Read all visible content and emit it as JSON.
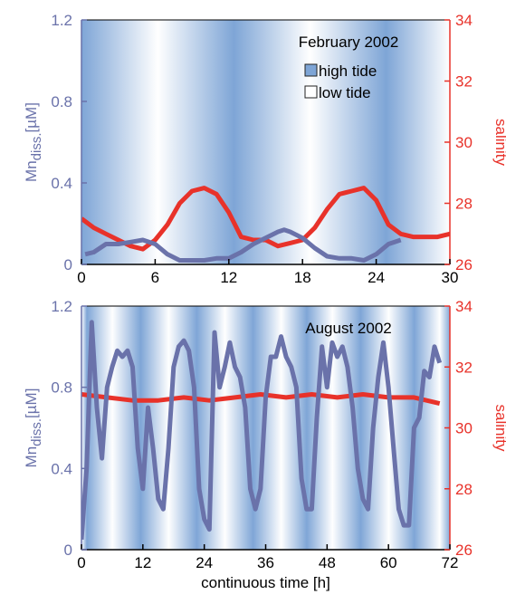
{
  "chart_data": [
    {
      "type": "line",
      "annotation": "February 2002",
      "xlim": [
        0,
        30
      ],
      "xticks": [
        0,
        6,
        12,
        18,
        24,
        30
      ],
      "ylim": [
        0,
        1.2
      ],
      "yticks": [
        0,
        0.4,
        0.8,
        1.2
      ],
      "y2lim": [
        26,
        34
      ],
      "y2ticks": [
        26,
        28,
        30,
        32,
        34
      ],
      "ylabel": [
        "Mn",
        "diss.",
        "[µM]"
      ],
      "y2label": "salinity",
      "tide_colors": {
        "high": "#7ea5d6",
        "low": "#ffffff"
      },
      "tide": [
        {
          "x": 0,
          "level": "high"
        },
        {
          "x": 6.2,
          "level": "low"
        },
        {
          "x": 12.4,
          "level": "high"
        },
        {
          "x": 18.6,
          "level": "low"
        },
        {
          "x": 24.8,
          "level": "high"
        },
        {
          "x": 30,
          "level": "low"
        }
      ],
      "legend": [
        {
          "label": "high tide",
          "level": "high"
        },
        {
          "label": "low tide",
          "level": "low"
        }
      ],
      "series": [
        {
          "color": "#e8322a",
          "axis": "y2",
          "x": [
            0,
            1,
            2,
            3,
            4,
            5,
            6,
            7,
            8,
            9,
            10,
            11,
            12,
            13,
            14,
            15,
            16,
            17,
            18,
            19,
            20,
            21,
            22,
            23,
            24,
            25,
            26,
            27,
            28,
            29,
            30
          ],
          "values": [
            27.5,
            27.2,
            27.0,
            26.8,
            26.6,
            26.5,
            26.8,
            27.3,
            28.0,
            28.4,
            28.5,
            28.3,
            27.7,
            26.9,
            26.8,
            26.8,
            26.6,
            26.7,
            26.8,
            27.2,
            27.8,
            28.3,
            28.4,
            28.5,
            28.1,
            27.3,
            27.0,
            26.9,
            26.9,
            26.9,
            27.0
          ]
        },
        {
          "color": "#6a72aa",
          "axis": "y",
          "x": [
            0.3,
            1,
            2,
            3,
            4,
            5,
            6,
            7,
            8,
            9,
            10,
            11,
            12,
            13,
            14,
            15,
            16,
            16.5,
            17,
            18,
            19,
            20,
            21,
            22,
            23,
            24,
            25,
            26
          ],
          "values": [
            0.05,
            0.06,
            0.1,
            0.1,
            0.11,
            0.12,
            0.1,
            0.05,
            0.02,
            0.02,
            0.02,
            0.03,
            0.03,
            0.06,
            0.1,
            0.13,
            0.16,
            0.17,
            0.16,
            0.13,
            0.08,
            0.04,
            0.03,
            0.03,
            0.02,
            0.05,
            0.1,
            0.12
          ]
        }
      ]
    },
    {
      "type": "line",
      "annotation": "August 2002",
      "xlabel": "continuous time [h]",
      "xlim": [
        0,
        72
      ],
      "xticks": [
        0,
        12,
        24,
        36,
        48,
        60,
        72
      ],
      "ylim": [
        0,
        1.2
      ],
      "yticks": [
        0,
        0.4,
        0.8,
        1.2
      ],
      "y2lim": [
        26,
        34
      ],
      "y2ticks": [
        26,
        28,
        30,
        32,
        34
      ],
      "ylabel": [
        "Mn",
        "diss.",
        "[µM]"
      ],
      "y2label": "salinity",
      "tide_colors": {
        "high": "#7ea5d6",
        "low": "#ffffff"
      },
      "tide": [
        {
          "x": 0,
          "level": "low"
        },
        {
          "x": 1,
          "level": "high"
        },
        {
          "x": 6,
          "level": "low"
        },
        {
          "x": 11.5,
          "level": "high"
        },
        {
          "x": 17,
          "level": "low"
        },
        {
          "x": 22.5,
          "level": "high"
        },
        {
          "x": 28,
          "level": "low"
        },
        {
          "x": 33.5,
          "level": "high"
        },
        {
          "x": 39,
          "level": "low"
        },
        {
          "x": 44,
          "level": "high"
        },
        {
          "x": 49,
          "level": "low"
        },
        {
          "x": 54.5,
          "level": "high"
        },
        {
          "x": 60,
          "level": "low"
        },
        {
          "x": 65,
          "level": "high"
        },
        {
          "x": 70,
          "level": "low"
        },
        {
          "x": 72,
          "level": "high"
        }
      ],
      "series": [
        {
          "color": "#e8322a",
          "axis": "y2",
          "x": [
            0,
            5,
            10,
            15,
            20,
            25,
            30,
            35,
            40,
            45,
            50,
            55,
            60,
            65,
            70
          ],
          "values": [
            31.1,
            31.0,
            30.9,
            30.9,
            31.0,
            30.9,
            31.0,
            31.1,
            31.0,
            31.1,
            31.0,
            31.1,
            31.0,
            31.0,
            30.8
          ]
        },
        {
          "color": "#6a72aa",
          "axis": "y",
          "x": [
            0,
            1,
            2,
            3,
            4,
            5,
            6,
            7,
            8,
            9,
            10,
            11,
            12,
            13,
            14,
            15,
            16,
            17,
            18,
            19,
            20,
            21,
            22,
            23,
            24,
            25,
            26,
            27,
            28,
            29,
            30,
            31,
            32,
            33,
            34,
            35,
            36,
            37,
            38,
            39,
            40,
            41,
            42,
            43,
            44,
            45,
            46,
            47,
            48,
            49,
            50,
            51,
            52,
            53,
            54,
            55,
            56,
            57,
            58,
            59,
            60,
            61,
            62,
            63,
            64,
            65,
            66,
            67,
            68,
            69,
            70
          ],
          "values": [
            0.05,
            0.4,
            1.12,
            0.7,
            0.45,
            0.8,
            0.9,
            0.98,
            0.95,
            0.98,
            0.9,
            0.5,
            0.3,
            0.7,
            0.5,
            0.25,
            0.2,
            0.5,
            0.9,
            1.0,
            1.03,
            0.98,
            0.8,
            0.3,
            0.15,
            0.1,
            1.07,
            0.8,
            0.9,
            1.02,
            0.9,
            0.85,
            0.7,
            0.3,
            0.2,
            0.3,
            0.75,
            0.95,
            0.95,
            1.05,
            0.95,
            0.9,
            0.8,
            0.35,
            0.2,
            0.2,
            0.65,
            1.0,
            0.8,
            1.02,
            0.95,
            1.0,
            0.9,
            0.7,
            0.4,
            0.25,
            0.2,
            0.6,
            0.85,
            1.02,
            0.8,
            0.5,
            0.2,
            0.12,
            0.12,
            0.6,
            0.65,
            0.88,
            0.85,
            1.0,
            0.92
          ]
        }
      ]
    }
  ]
}
